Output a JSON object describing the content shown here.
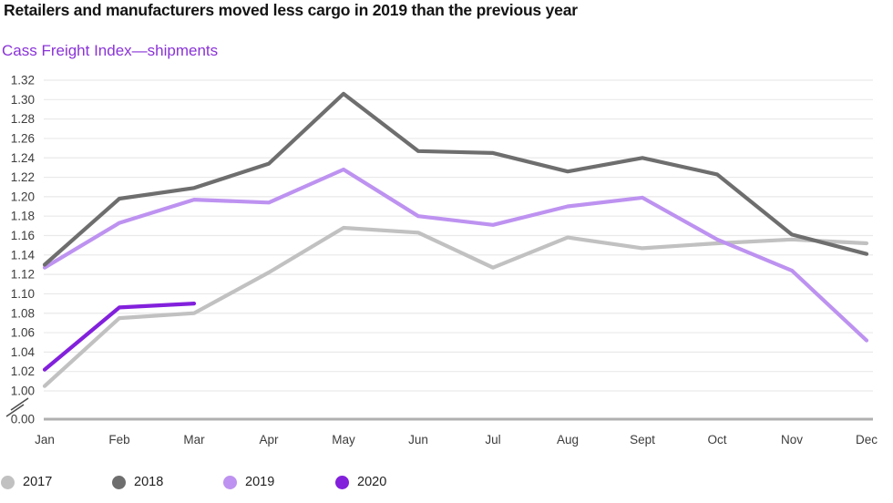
{
  "header": {
    "title": "Retailers and manufacturers moved less cargo in 2019 than the previous year",
    "subtitle": "Cass Freight Index—shipments"
  },
  "chart_data": {
    "type": "line",
    "title": "Retailers and manufacturers moved less cargo in 2019 than the previous year",
    "subtitle": "Cass Freight Index—shipments",
    "categories": [
      "Jan",
      "Feb",
      "Mar",
      "Apr",
      "May",
      "Jun",
      "Jul",
      "Aug",
      "Sept",
      "Oct",
      "Nov",
      "Dec"
    ],
    "y_tick_labels": [
      "1.32",
      "1.30",
      "1.28",
      "1.26",
      "1.24",
      "1.22",
      "1.20",
      "1.18",
      "1.16",
      "1.14",
      "1.12",
      "1.10",
      "1.08",
      "1.06",
      "1.04",
      "1.02",
      "1.00"
    ],
    "y_zero_label": "0.00",
    "ylim": [
      1.0,
      1.32
    ],
    "y_step": 0.02,
    "axis_break": true,
    "grid": true,
    "legend_position": "bottom",
    "series": [
      {
        "name": "2017",
        "color": "#c1c1c1",
        "values": [
          1.005,
          1.075,
          1.08,
          1.122,
          1.168,
          1.163,
          1.127,
          1.158,
          1.147,
          1.152,
          1.156,
          1.152
        ]
      },
      {
        "name": "2019",
        "color": "#bd92f0",
        "values": [
          1.127,
          1.173,
          1.197,
          1.194,
          1.228,
          1.18,
          1.171,
          1.19,
          1.199,
          1.156,
          1.124,
          1.052
        ]
      },
      {
        "name": "2018",
        "color": "#6e6e6e",
        "values": [
          1.13,
          1.198,
          1.209,
          1.234,
          1.306,
          1.247,
          1.245,
          1.226,
          1.24,
          1.223,
          1.161,
          1.141
        ]
      },
      {
        "name": "2020",
        "color": "#8220dc",
        "values": [
          1.022,
          1.086,
          1.09
        ]
      }
    ],
    "legend_order": [
      "2017",
      "2018",
      "2019",
      "2020"
    ]
  },
  "colors": {
    "gridline": "#e9e9e9",
    "zero_axis": "#b0b0b0",
    "tick_text": "#3c3c3c",
    "break_mark": "#4d4d4d",
    "subtitle_accent": "#8a33d8"
  }
}
